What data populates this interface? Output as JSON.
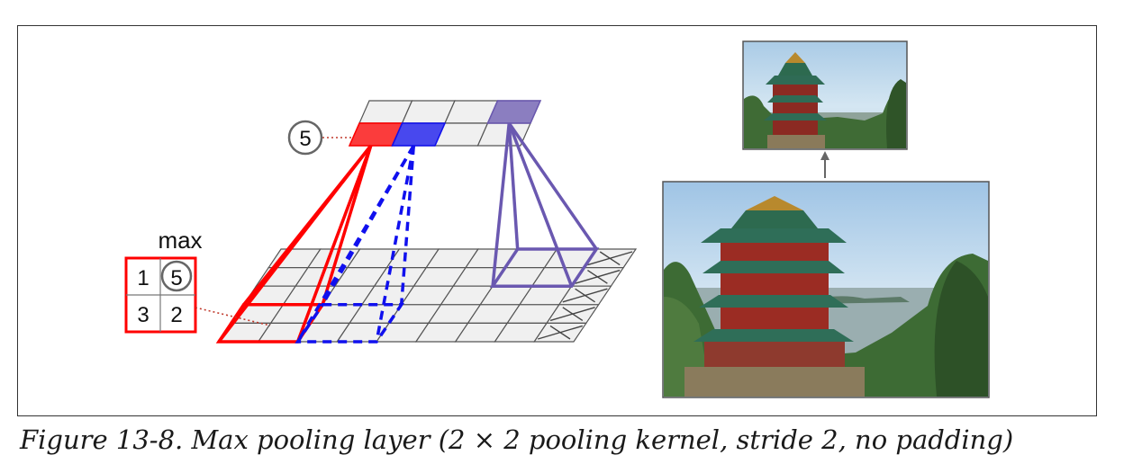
{
  "diagram": {
    "max_label": "max",
    "pool_window_values": [
      "1",
      "5",
      "3",
      "2"
    ],
    "pool_output_value": "5"
  },
  "caption": "Figure 13-8. Max pooling layer (2 × 2 pooling kernel, stride 2, no padding)",
  "colors": {
    "red": "#ff0000",
    "blue": "#1010ee",
    "purple": "#6a58b0",
    "grid_fill": "#f0f0f0",
    "grid_line": "#555555"
  }
}
